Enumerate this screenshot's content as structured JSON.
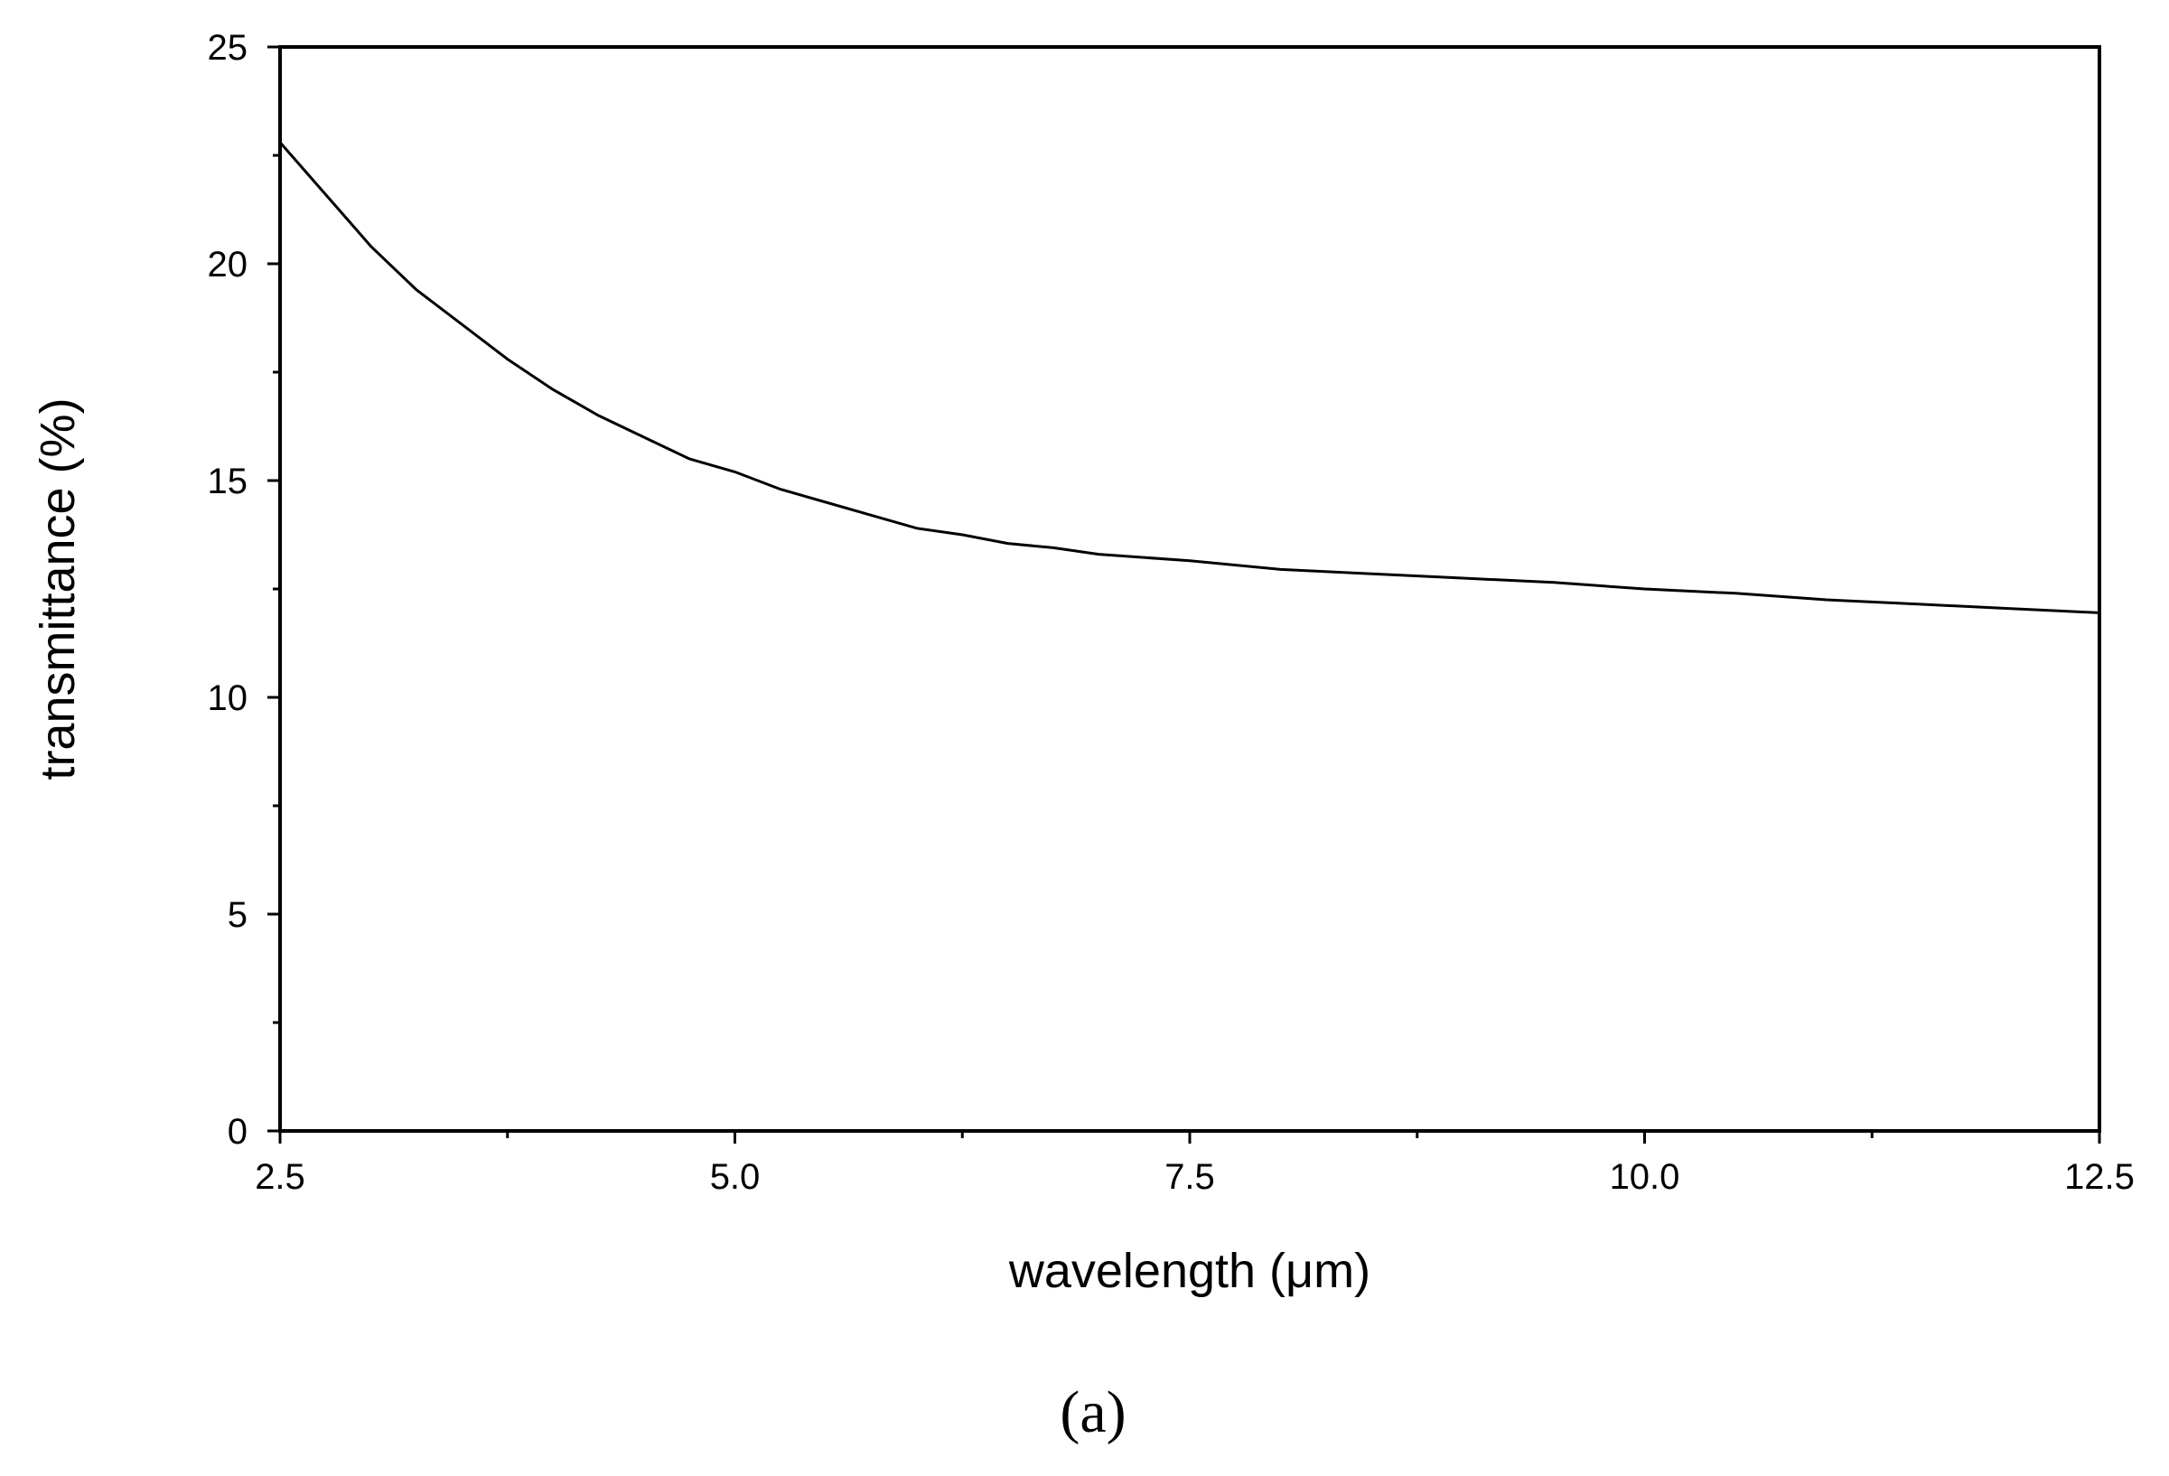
{
  "chart_data": {
    "type": "line",
    "title": "",
    "xlabel": "wavelength (μm)",
    "ylabel": "transmittance (%)",
    "panel_label": "(a)",
    "xlim": [
      2.5,
      12.5
    ],
    "ylim": [
      0,
      25
    ],
    "x_ticks": [
      "2.5",
      "5.0",
      "7.5",
      "10.0",
      "12.5"
    ],
    "y_ticks": [
      "0",
      "5",
      "10",
      "15",
      "20",
      "25"
    ],
    "grid": false,
    "legend": "none",
    "line_color": "#000000",
    "series": [
      {
        "x": [
          2.5,
          2.75,
          3.0,
          3.25,
          3.5,
          3.75,
          4.0,
          4.25,
          4.5,
          4.75,
          5.0,
          5.25,
          5.5,
          5.75,
          6.0,
          6.25,
          6.5,
          6.75,
          7.0,
          7.5,
          8.0,
          8.5,
          9.0,
          9.5,
          10.0,
          10.5,
          11.0,
          11.5,
          12.0,
          12.5
        ],
        "y": [
          22.8,
          21.6,
          20.4,
          19.4,
          18.6,
          17.8,
          17.1,
          16.5,
          16.0,
          15.5,
          15.2,
          14.8,
          14.5,
          14.2,
          13.9,
          13.75,
          13.55,
          13.45,
          13.3,
          13.15,
          12.95,
          12.85,
          12.75,
          12.65,
          12.5,
          12.4,
          12.25,
          12.15,
          12.05,
          11.95
        ]
      }
    ]
  }
}
